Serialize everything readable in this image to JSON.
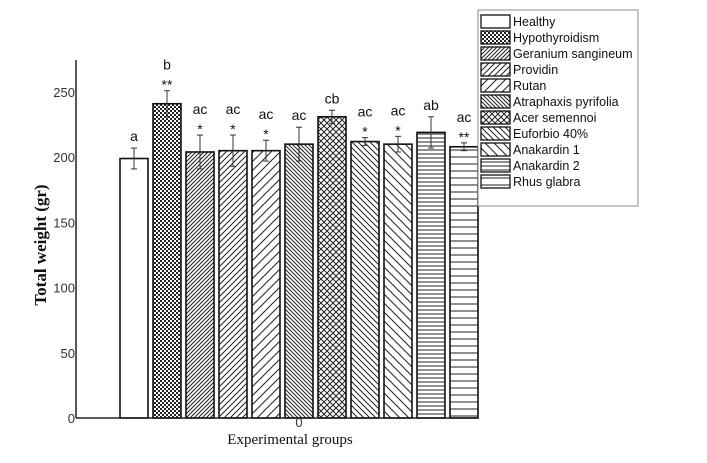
{
  "chart_data": {
    "type": "bar",
    "xlabel": "Experimental groups",
    "ylabel": "Total weight (gr)",
    "x_tick_label": "0",
    "ylim": [
      0,
      270
    ],
    "yticks": [
      0,
      50,
      100,
      150,
      200,
      250
    ],
    "grid": false,
    "legend_position": "top-right",
    "series": [
      {
        "name": "Healthy",
        "value": 199,
        "error": 8,
        "letters": "a",
        "stars": "",
        "pattern": "none"
      },
      {
        "name": "Hypothyroidism",
        "value": 241,
        "error": 10,
        "letters": "b",
        "stars": "**",
        "pattern": "dense-dots"
      },
      {
        "name": "Geranium sangineum",
        "value": 204,
        "error": 13,
        "letters": "ac",
        "stars": "*",
        "pattern": "fine-diagonal-right"
      },
      {
        "name": "Providin",
        "value": 205,
        "error": 12,
        "letters": "ac",
        "stars": "*",
        "pattern": "diagonal-right"
      },
      {
        "name": "Rutan",
        "value": 205,
        "error": 8,
        "letters": "ac",
        "stars": "*",
        "pattern": "wide-diagonal-right"
      },
      {
        "name": "Atraphaxis pyrifolia",
        "value": 210,
        "error": 13,
        "letters": "ac",
        "stars": "",
        "pattern": "fine-diagonal-left"
      },
      {
        "name": "Acer semennoi",
        "value": 231,
        "error": 5,
        "letters": "cb",
        "stars": "",
        "pattern": "crosshatch"
      },
      {
        "name": "Euforbio 40%",
        "value": 212,
        "error": 3,
        "letters": "ac",
        "stars": "*",
        "pattern": "diagonal-left"
      },
      {
        "name": "Anakardin 1",
        "value": 210,
        "error": 6,
        "letters": "ac",
        "stars": "*",
        "pattern": "wide-diagonal-left"
      },
      {
        "name": "Anakardin 2",
        "value": 219,
        "error": 12,
        "letters": "ab",
        "stars": "",
        "pattern": "horizontal"
      },
      {
        "name": "Rhus glabra",
        "value": 208,
        "error": 3,
        "letters": "ac",
        "stars": "**",
        "pattern": "wide-horizontal"
      }
    ]
  }
}
